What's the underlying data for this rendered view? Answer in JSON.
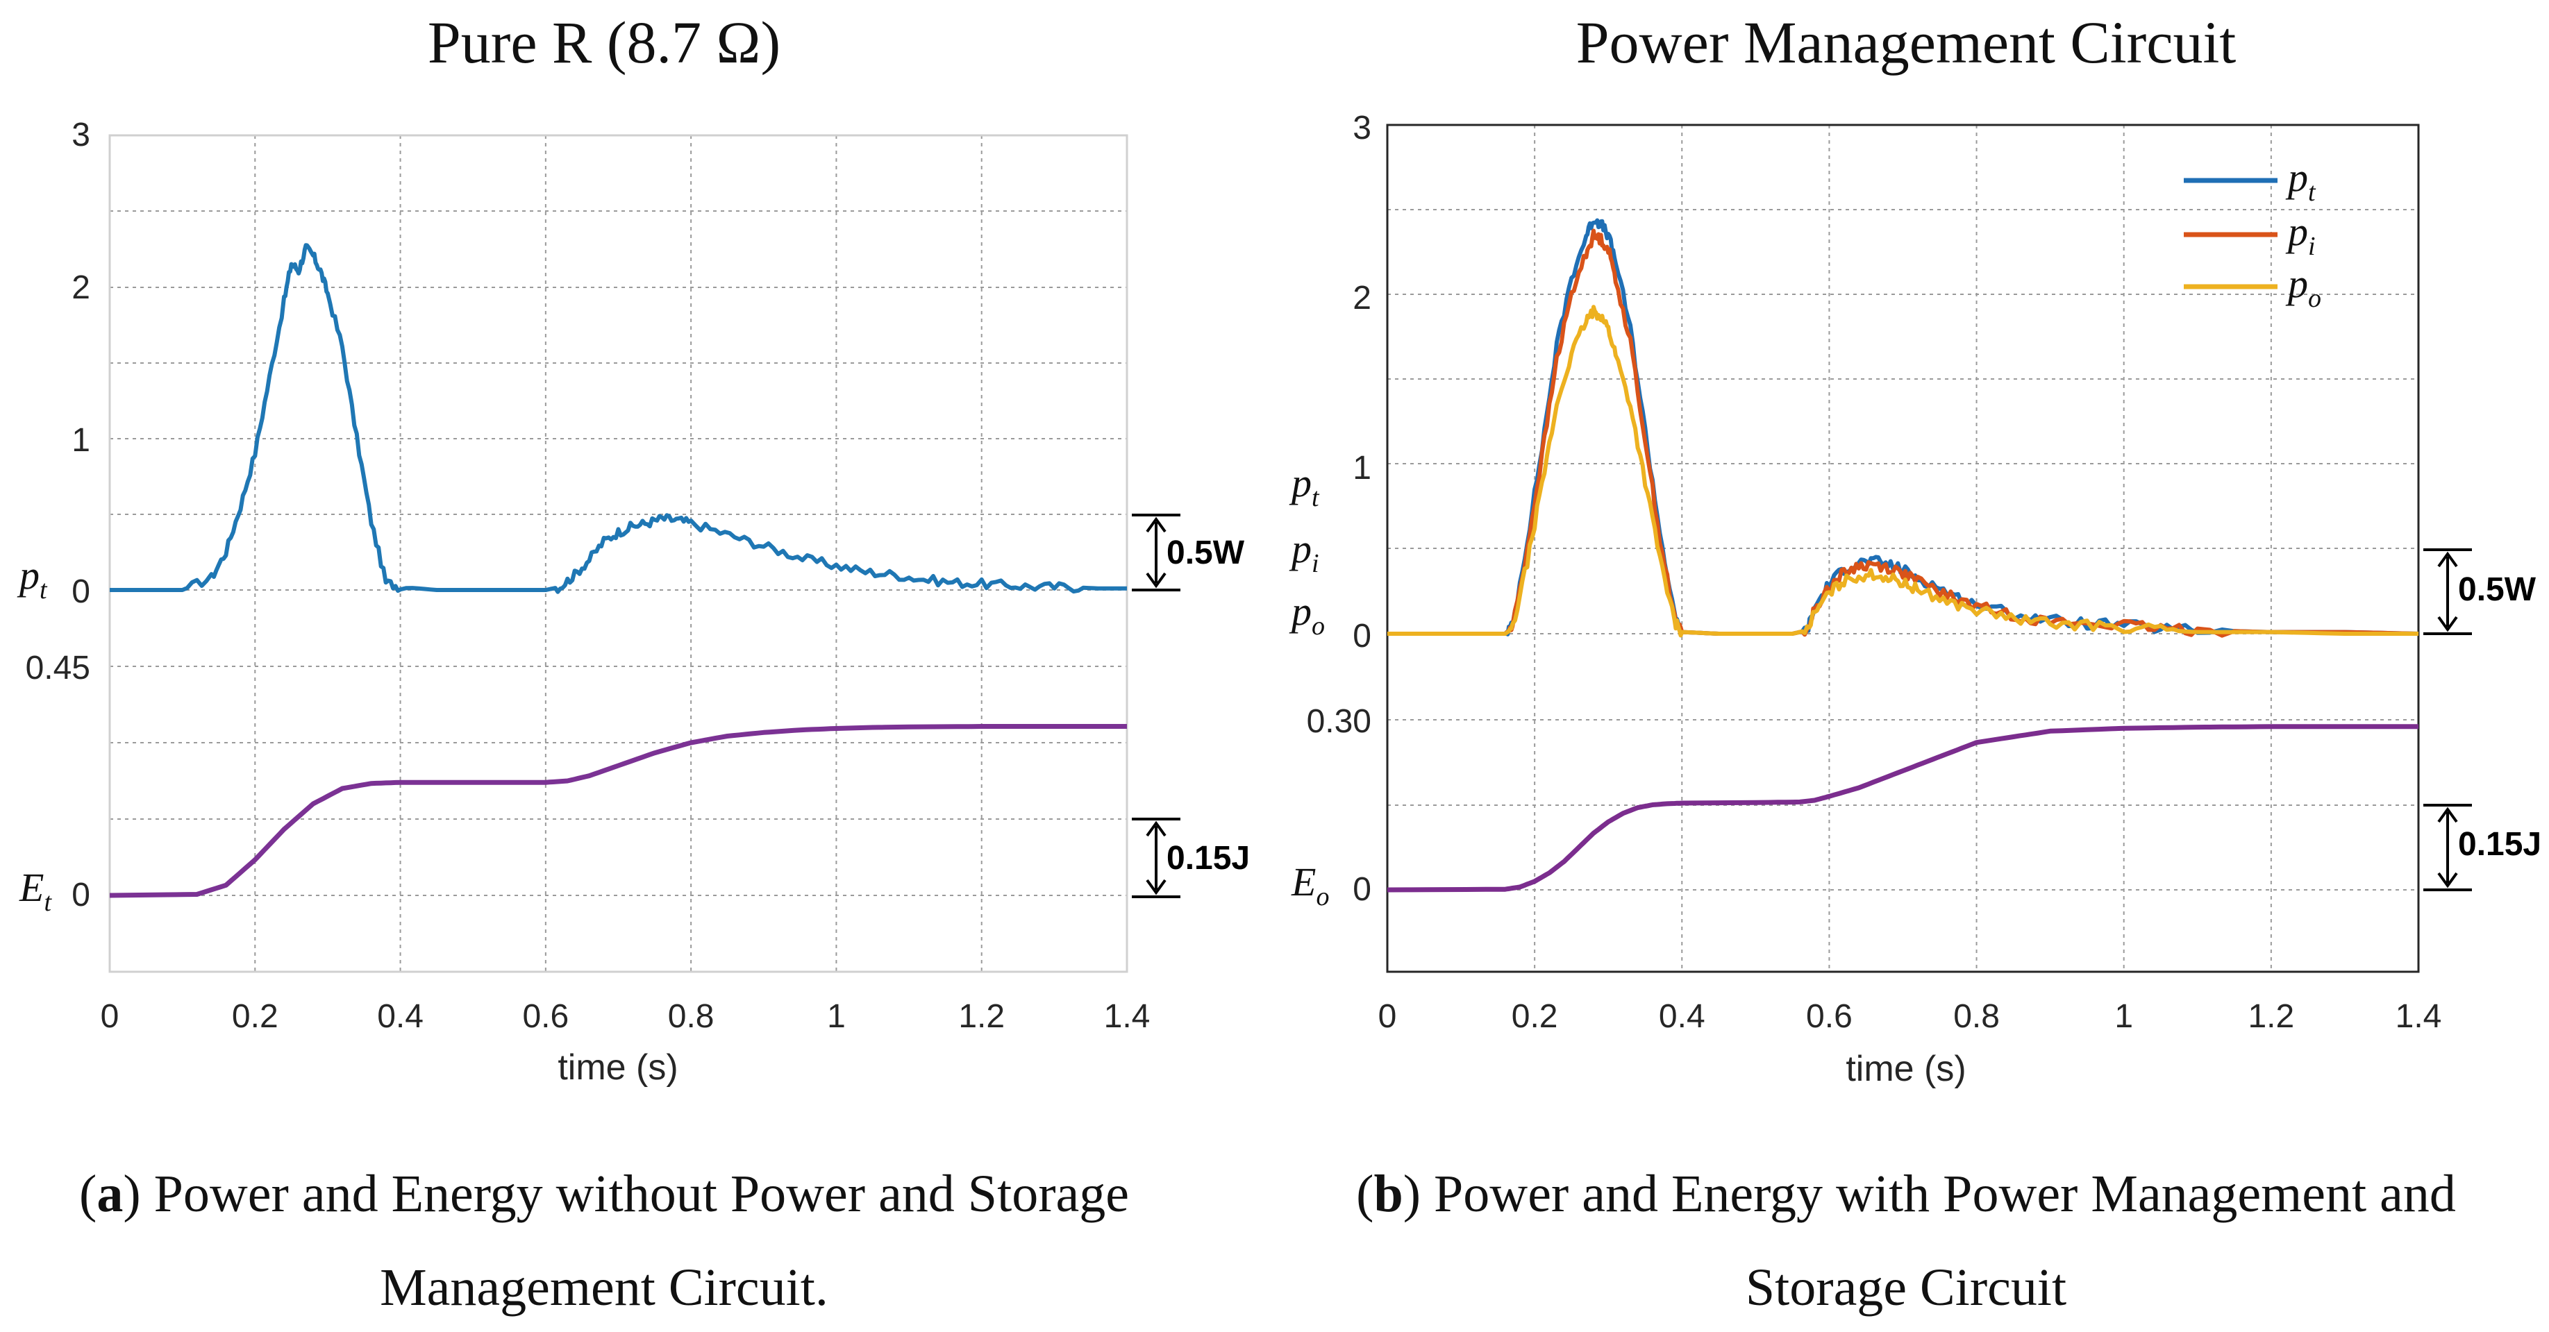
{
  "chart_data": [
    {
      "id": "a",
      "type": "line",
      "title": "Pure R (8.7 Ω)",
      "xlabel": "time (s)",
      "xlim": [
        0,
        1.4
      ],
      "x_ticks": [
        "0",
        "0.2",
        "0.4",
        "0.6",
        "0.8",
        "1",
        "1.2",
        "1.4"
      ],
      "y_ticks_power": [
        "3",
        "2",
        "1",
        "0"
      ],
      "y_tick_energy_max": "0.45",
      "y_tick_energy_zero": "0",
      "ylabel_power": {
        "base": "p",
        "sub": "t"
      },
      "ylabel_energy": {
        "base": "E",
        "sub": "t"
      },
      "power_scale_label": "0.5W",
      "energy_scale_label": "0.15J",
      "power_ylim": [
        0,
        3
      ],
      "energy_ylim": [
        0,
        0.45
      ],
      "series": [
        {
          "name": "p_t",
          "axis": "power",
          "color": "#1f77b4",
          "x": [
            0,
            0.1,
            0.14,
            0.16,
            0.18,
            0.2,
            0.22,
            0.24,
            0.25,
            0.26,
            0.27,
            0.28,
            0.29,
            0.3,
            0.32,
            0.34,
            0.36,
            0.38,
            0.4,
            0.45,
            0.5,
            0.55,
            0.6,
            0.62,
            0.64,
            0.66,
            0.68,
            0.7,
            0.72,
            0.74,
            0.76,
            0.78,
            0.8,
            0.84,
            0.88,
            0.92,
            0.96,
            1.0,
            1.04,
            1.08,
            1.12,
            1.16,
            1.2,
            1.24,
            1.28,
            1.32,
            1.36,
            1.4
          ],
          "y": [
            0,
            0,
            0.08,
            0.25,
            0.55,
            0.9,
            1.4,
            1.9,
            2.15,
            2.1,
            2.25,
            2.2,
            2.1,
            1.95,
            1.6,
            1.0,
            0.45,
            0.05,
            0.02,
            0,
            0,
            0,
            0,
            0.02,
            0.1,
            0.2,
            0.32,
            0.38,
            0.42,
            0.44,
            0.47,
            0.46,
            0.44,
            0.38,
            0.32,
            0.26,
            0.2,
            0.16,
            0.12,
            0.1,
            0.07,
            0.05,
            0.04,
            0.03,
            0.02,
            0.02,
            0.01,
            0.01
          ]
        },
        {
          "name": "E_t",
          "axis": "energy",
          "color": "#7b3294",
          "x": [
            0,
            0.12,
            0.16,
            0.2,
            0.24,
            0.28,
            0.32,
            0.36,
            0.4,
            0.5,
            0.6,
            0.63,
            0.66,
            0.7,
            0.75,
            0.8,
            0.85,
            0.9,
            0.95,
            1.0,
            1.05,
            1.1,
            1.2,
            1.3,
            1.4
          ],
          "y": [
            0,
            0.002,
            0.02,
            0.07,
            0.13,
            0.18,
            0.21,
            0.22,
            0.222,
            0.222,
            0.222,
            0.225,
            0.235,
            0.255,
            0.28,
            0.3,
            0.313,
            0.32,
            0.325,
            0.328,
            0.33,
            0.331,
            0.332,
            0.332,
            0.332
          ]
        }
      ]
    },
    {
      "id": "b",
      "type": "line",
      "title": "Power Management Circuit",
      "xlabel": "time (s)",
      "xlim": [
        0,
        1.4
      ],
      "x_ticks": [
        "0",
        "0.2",
        "0.4",
        "0.6",
        "0.8",
        "1",
        "1.2",
        "1.4"
      ],
      "y_ticks_power": [
        "3",
        "2",
        "1",
        "0"
      ],
      "y_tick_energy_max": "0.30",
      "y_tick_energy_zero": "0",
      "ylabel_power": [
        {
          "base": "p",
          "sub": "t"
        },
        {
          "base": "p",
          "sub": "i"
        },
        {
          "base": "p",
          "sub": "o"
        }
      ],
      "ylabel_energy": {
        "base": "E",
        "sub": "o"
      },
      "power_scale_label": "0.5W",
      "energy_scale_label": "0.15J",
      "power_ylim": [
        0,
        3
      ],
      "energy_ylim": [
        0,
        0.3
      ],
      "legend": {
        "position": "top-right",
        "entries": [
          {
            "base": "p",
            "sub": "t"
          },
          {
            "base": "p",
            "sub": "i"
          },
          {
            "base": "p",
            "sub": "o"
          }
        ]
      },
      "series": [
        {
          "name": "p_t",
          "axis": "power",
          "color": "#1f6fb5",
          "x": [
            0,
            0.16,
            0.17,
            0.19,
            0.21,
            0.23,
            0.25,
            0.27,
            0.28,
            0.29,
            0.3,
            0.31,
            0.33,
            0.35,
            0.37,
            0.39,
            0.4,
            0.45,
            0.5,
            0.55,
            0.57,
            0.58,
            0.6,
            0.62,
            0.64,
            0.66,
            0.68,
            0.7,
            0.72,
            0.75,
            0.78,
            0.82,
            0.86,
            0.9,
            0.95,
            1.0,
            1.05,
            1.1,
            1.2,
            1.3,
            1.4
          ],
          "y": [
            0,
            0,
            0.05,
            0.55,
            1.1,
            1.7,
            2.1,
            2.35,
            2.45,
            2.42,
            2.35,
            2.2,
            1.8,
            1.2,
            0.6,
            0.1,
            0.01,
            0,
            0,
            0,
            0.02,
            0.15,
            0.3,
            0.38,
            0.42,
            0.43,
            0.41,
            0.38,
            0.33,
            0.27,
            0.2,
            0.15,
            0.11,
            0.08,
            0.06,
            0.05,
            0.03,
            0.02,
            0.01,
            0.01,
            0
          ]
        },
        {
          "name": "p_i",
          "axis": "power",
          "color": "#d95319",
          "x": [
            0,
            0.16,
            0.17,
            0.19,
            0.21,
            0.23,
            0.25,
            0.27,
            0.28,
            0.29,
            0.3,
            0.31,
            0.33,
            0.35,
            0.37,
            0.39,
            0.4,
            0.45,
            0.5,
            0.55,
            0.57,
            0.58,
            0.6,
            0.62,
            0.64,
            0.66,
            0.68,
            0.7,
            0.72,
            0.75,
            0.78,
            0.82,
            0.86,
            0.9,
            0.95,
            1.0,
            1.05,
            1.1,
            1.2,
            1.3,
            1.4
          ],
          "y": [
            0,
            0,
            0.04,
            0.5,
            1.05,
            1.62,
            2.0,
            2.25,
            2.35,
            2.33,
            2.27,
            2.1,
            1.72,
            1.15,
            0.56,
            0.09,
            0.01,
            0,
            0,
            0,
            0.02,
            0.14,
            0.28,
            0.36,
            0.4,
            0.41,
            0.39,
            0.36,
            0.31,
            0.25,
            0.19,
            0.14,
            0.1,
            0.07,
            0.06,
            0.05,
            0.03,
            0.02,
            0.01,
            0.01,
            0
          ]
        },
        {
          "name": "p_o",
          "axis": "power",
          "color": "#edb120",
          "x": [
            0,
            0.16,
            0.17,
            0.19,
            0.21,
            0.23,
            0.25,
            0.27,
            0.28,
            0.29,
            0.3,
            0.31,
            0.33,
            0.35,
            0.37,
            0.39,
            0.4,
            0.45,
            0.5,
            0.55,
            0.57,
            0.58,
            0.6,
            0.62,
            0.64,
            0.66,
            0.68,
            0.7,
            0.72,
            0.75,
            0.78,
            0.82,
            0.86,
            0.9,
            0.95,
            1.0,
            1.05,
            1.1,
            1.2,
            1.3,
            1.4
          ],
          "y": [
            0,
            0,
            0.03,
            0.42,
            0.88,
            1.35,
            1.65,
            1.85,
            1.9,
            1.88,
            1.8,
            1.65,
            1.35,
            0.9,
            0.45,
            0.07,
            0.01,
            0,
            0,
            0,
            0.02,
            0.12,
            0.24,
            0.31,
            0.34,
            0.35,
            0.33,
            0.3,
            0.26,
            0.21,
            0.16,
            0.12,
            0.08,
            0.06,
            0.05,
            0.04,
            0.02,
            0.01,
            0.01,
            0,
            0
          ]
        },
        {
          "name": "E_o",
          "axis": "energy",
          "color": "#7b2d8e",
          "x": [
            0,
            0.16,
            0.18,
            0.2,
            0.22,
            0.24,
            0.26,
            0.28,
            0.3,
            0.32,
            0.34,
            0.36,
            0.38,
            0.4,
            0.5,
            0.56,
            0.58,
            0.6,
            0.64,
            0.68,
            0.72,
            0.76,
            0.8,
            0.85,
            0.9,
            1.0,
            1.1,
            1.2,
            1.3,
            1.4
          ],
          "y": [
            0,
            0.001,
            0.005,
            0.015,
            0.03,
            0.05,
            0.075,
            0.1,
            0.12,
            0.135,
            0.145,
            0.15,
            0.152,
            0.153,
            0.154,
            0.155,
            0.158,
            0.165,
            0.18,
            0.2,
            0.22,
            0.24,
            0.26,
            0.27,
            0.28,
            0.285,
            0.287,
            0.288,
            0.288,
            0.288
          ]
        }
      ]
    }
  ],
  "captions": [
    {
      "label": "a",
      "line1_rest": ") Power and Energy without Power and Storage",
      "line2": "Management Circuit."
    },
    {
      "label": "b",
      "line1_rest": ") Power and Energy with Power Management and",
      "line2": "Storage Circuit"
    }
  ]
}
